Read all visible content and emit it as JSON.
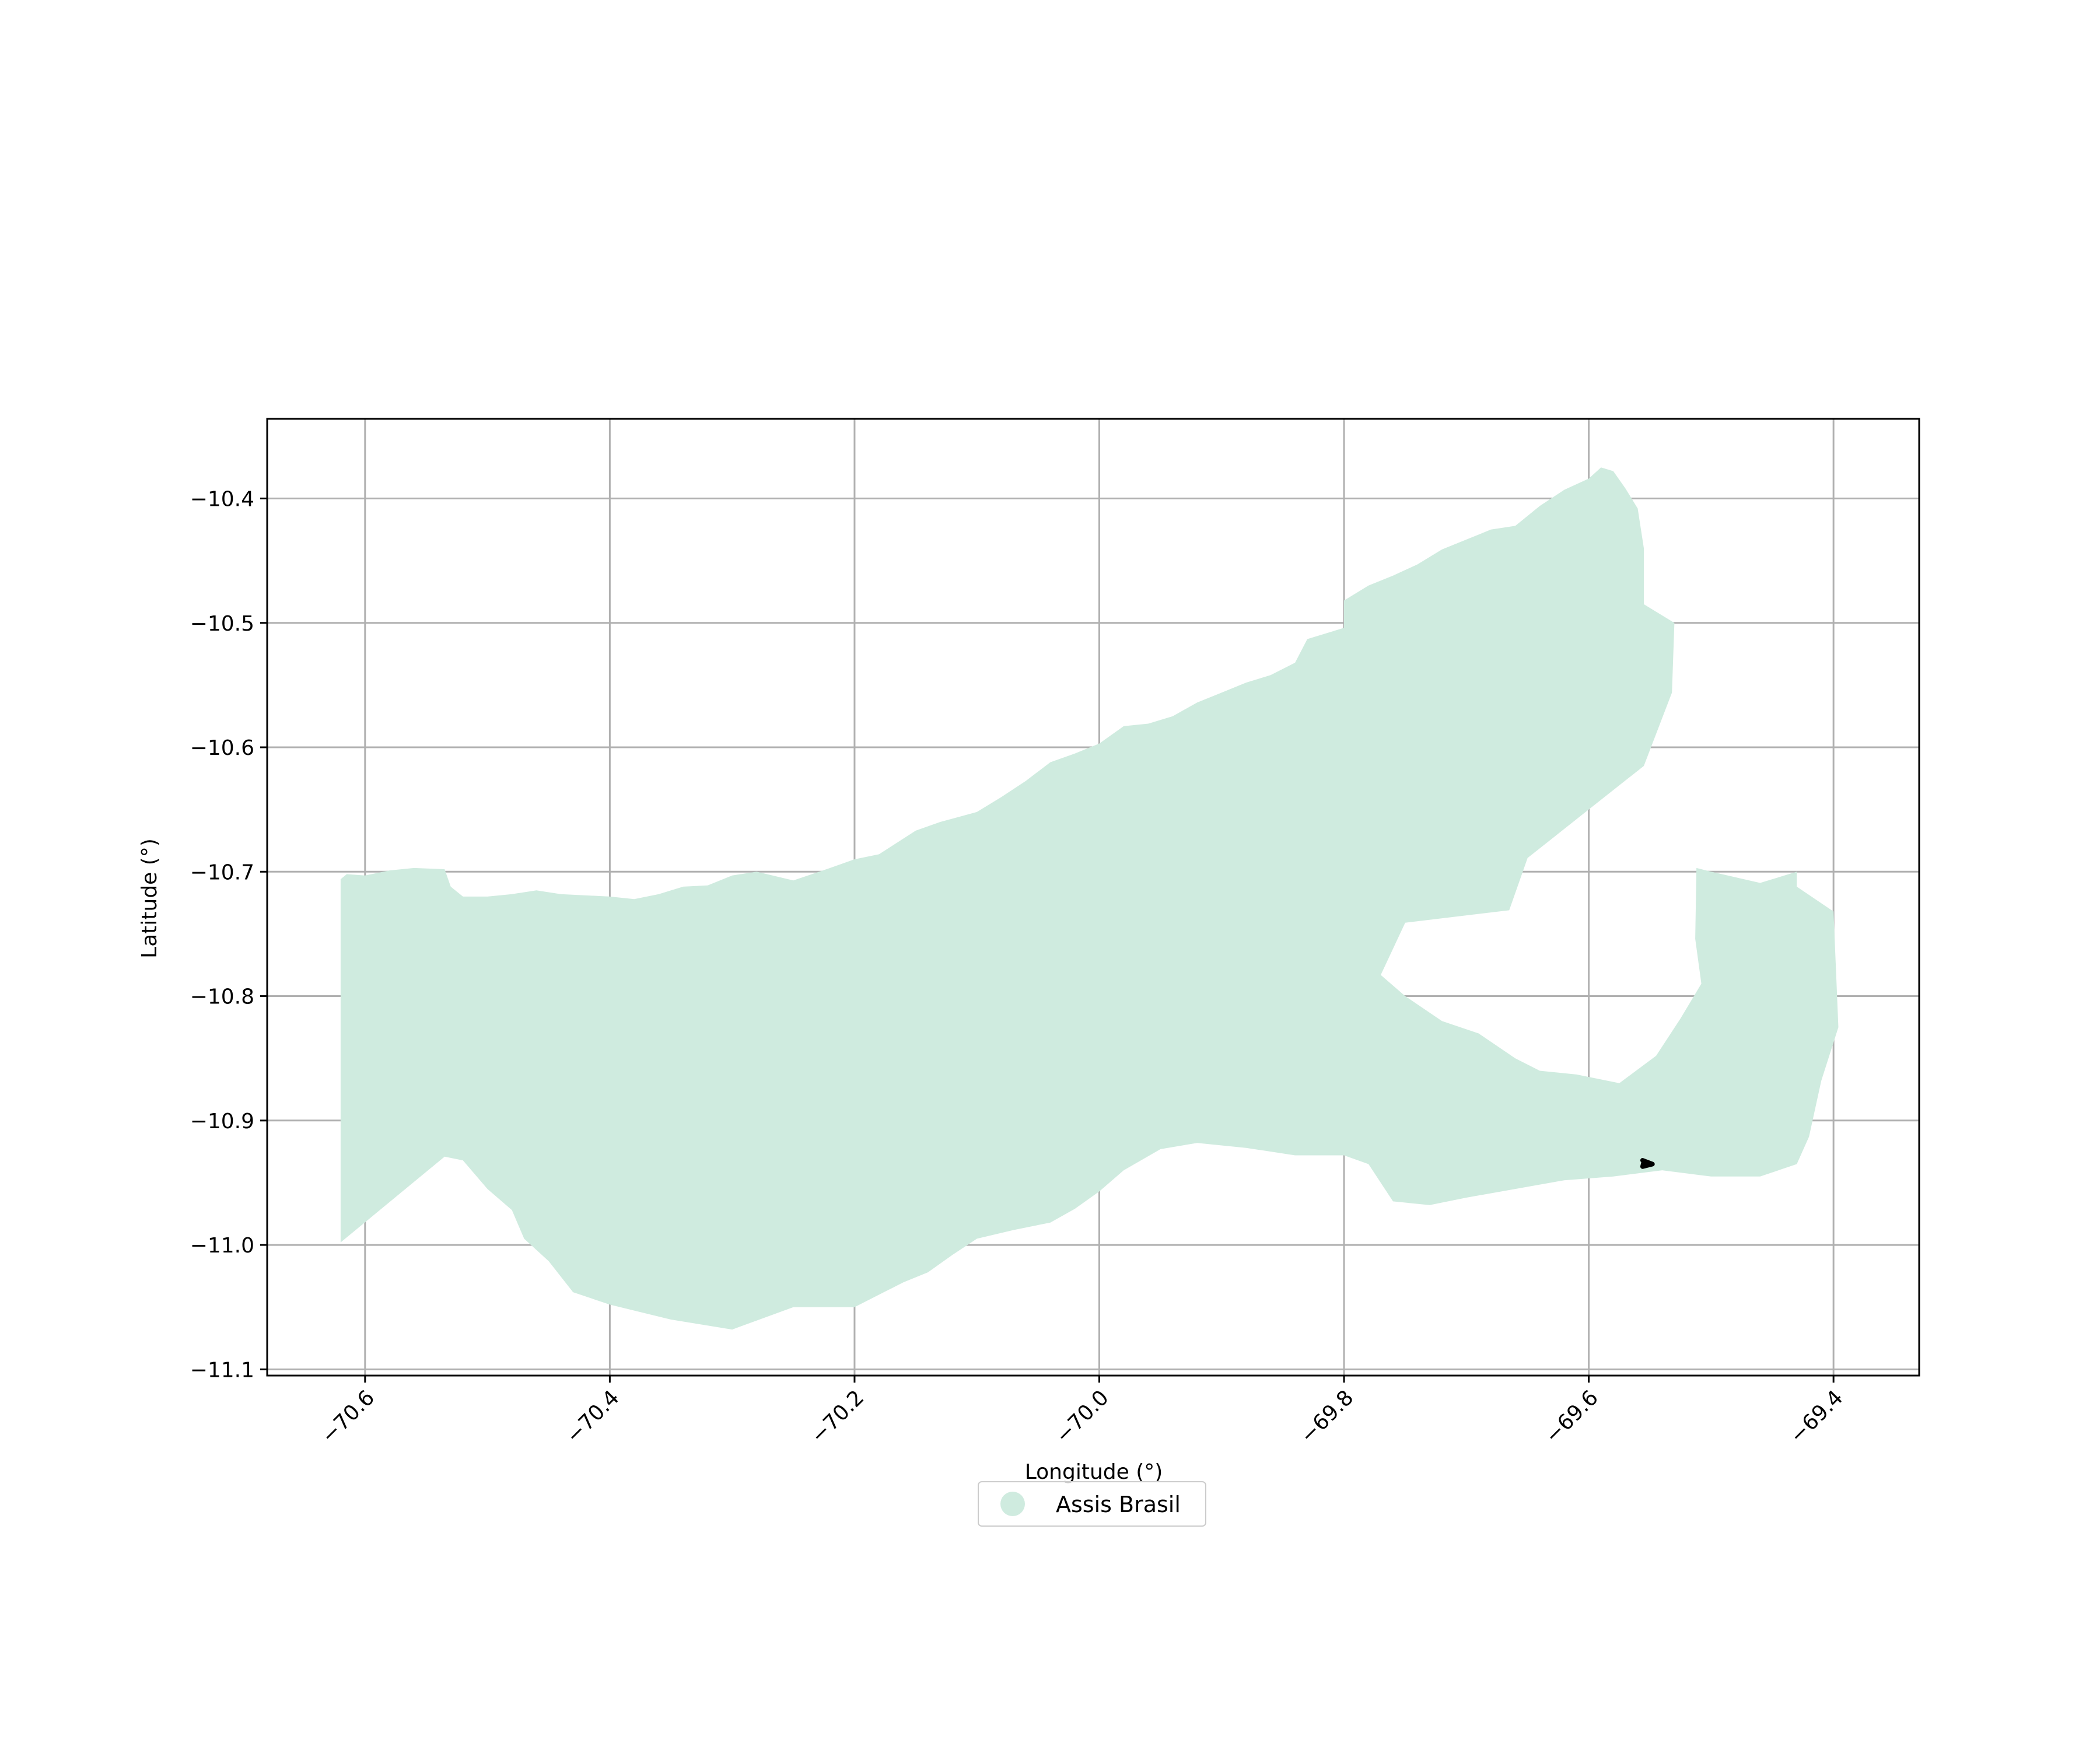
{
  "colors": {
    "region_fill": "#cfebdf",
    "outline": "#000000",
    "grid": "#b0b0b0",
    "background": "#ffffff"
  },
  "chart_data": {
    "type": "map",
    "xlabel": "Longitude (°)",
    "ylabel": "Latitude (°)",
    "xlim": [
      -70.68,
      -69.33
    ],
    "ylim": [
      -11.105,
      -10.336
    ],
    "x_ticks": [
      -70.6,
      -70.4,
      -70.2,
      -70.0,
      -69.8,
      -69.6,
      -69.4
    ],
    "y_ticks": [
      -10.4,
      -10.5,
      -10.6,
      -10.7,
      -10.8,
      -10.9,
      -11.0,
      -11.1
    ],
    "x_tick_labels": [
      "−70.6",
      "−70.4",
      "−70.2",
      "−70.0",
      "−69.8",
      "−69.6",
      "−69.4"
    ],
    "y_tick_labels": [
      "−10.4",
      "−10.5",
      "−10.6",
      "−10.7",
      "−10.8",
      "−10.9",
      "−11.0",
      "−11.1"
    ],
    "grid": true,
    "legend": {
      "placement": "bottom-center",
      "entries": [
        "Assis Brasil"
      ]
    },
    "series": [
      {
        "name": "Assis Brasil",
        "kind": "polygon",
        "outer": [
          [
            -70.62,
            -10.706
          ],
          [
            -70.615,
            -10.702
          ],
          [
            -70.6,
            -10.703
          ],
          [
            -70.58,
            -10.699
          ],
          [
            -70.56,
            -10.697
          ],
          [
            -70.535,
            -10.698
          ],
          [
            -70.53,
            -10.712
          ],
          [
            -70.52,
            -10.72
          ],
          [
            -70.5,
            -10.72
          ],
          [
            -70.48,
            -10.718
          ],
          [
            -70.46,
            -10.715
          ],
          [
            -70.44,
            -10.718
          ],
          [
            -70.4,
            -10.72
          ],
          [
            -70.38,
            -10.722
          ],
          [
            -70.36,
            -10.718
          ],
          [
            -70.34,
            -10.712
          ],
          [
            -70.32,
            -10.711
          ],
          [
            -70.3,
            -10.703
          ],
          [
            -70.28,
            -10.7
          ],
          [
            -70.25,
            -10.707
          ],
          [
            -70.22,
            -10.697
          ],
          [
            -70.2,
            -10.69
          ],
          [
            -70.18,
            -10.686
          ],
          [
            -70.15,
            -10.667
          ],
          [
            -70.13,
            -10.66
          ],
          [
            -70.1,
            -10.652
          ],
          [
            -70.08,
            -10.64
          ],
          [
            -70.06,
            -10.627
          ],
          [
            -70.04,
            -10.612
          ],
          [
            -70.02,
            -10.605
          ],
          [
            -70.0,
            -10.597
          ],
          [
            -69.98,
            -10.583
          ],
          [
            -69.96,
            -10.581
          ],
          [
            -69.94,
            -10.575
          ],
          [
            -69.92,
            -10.564
          ],
          [
            -69.9,
            -10.556
          ],
          [
            -69.88,
            -10.548
          ],
          [
            -69.86,
            -10.542
          ],
          [
            -69.84,
            -10.532
          ],
          [
            -69.83,
            -10.513
          ],
          [
            -69.8,
            -10.504
          ],
          [
            -69.8,
            -10.482
          ],
          [
            -69.78,
            -10.47
          ],
          [
            -69.76,
            -10.462
          ],
          [
            -69.74,
            -10.453
          ],
          [
            -69.72,
            -10.441
          ],
          [
            -69.7,
            -10.433
          ],
          [
            -69.68,
            -10.425
          ],
          [
            -69.66,
            -10.422
          ],
          [
            -69.64,
            -10.406
          ],
          [
            -69.62,
            -10.393
          ],
          [
            -69.6,
            -10.384
          ],
          [
            -69.59,
            -10.375
          ],
          [
            -69.58,
            -10.378
          ],
          [
            -69.57,
            -10.392
          ],
          [
            -69.56,
            -10.408
          ],
          [
            -69.555,
            -10.44
          ],
          [
            -69.555,
            -10.485
          ],
          [
            -69.53,
            -10.5
          ],
          [
            -69.532,
            -10.556
          ],
          [
            -69.555,
            -10.615
          ],
          [
            -69.6,
            -10.65
          ],
          [
            -69.65,
            -10.689
          ],
          [
            -69.665,
            -10.731
          ],
          [
            -69.75,
            -10.741
          ],
          [
            -69.77,
            -10.783
          ],
          [
            -69.75,
            -10.8
          ],
          [
            -69.72,
            -10.82
          ],
          [
            -69.69,
            -10.83
          ],
          [
            -69.66,
            -10.85
          ],
          [
            -69.64,
            -10.86
          ],
          [
            -69.61,
            -10.863
          ],
          [
            -69.575,
            -10.87
          ],
          [
            -69.545,
            -10.848
          ],
          [
            -69.525,
            -10.818
          ],
          [
            -69.508,
            -10.79
          ],
          [
            -69.513,
            -10.754
          ],
          [
            -69.512,
            -10.697
          ],
          [
            -69.5,
            -10.7
          ],
          [
            -69.46,
            -10.709
          ],
          [
            -69.43,
            -10.7
          ],
          [
            -69.43,
            -10.712
          ],
          [
            -69.4,
            -10.732
          ],
          [
            -69.396,
            -10.825
          ],
          [
            -69.41,
            -10.868
          ],
          [
            -69.42,
            -10.913
          ],
          [
            -69.43,
            -10.935
          ],
          [
            -69.46,
            -10.945
          ],
          [
            -69.5,
            -10.945
          ],
          [
            -69.54,
            -10.94
          ],
          [
            -69.58,
            -10.945
          ],
          [
            -69.62,
            -10.948
          ],
          [
            -69.66,
            -10.955
          ],
          [
            -69.7,
            -10.962
          ],
          [
            -69.73,
            -10.968
          ],
          [
            -69.76,
            -10.965
          ],
          [
            -69.78,
            -10.935
          ],
          [
            -69.8,
            -10.928
          ],
          [
            -69.84,
            -10.928
          ],
          [
            -69.88,
            -10.922
          ],
          [
            -69.92,
            -10.918
          ],
          [
            -69.95,
            -10.923
          ],
          [
            -69.98,
            -10.94
          ],
          [
            -70.0,
            -10.957
          ],
          [
            -70.02,
            -10.971
          ],
          [
            -70.04,
            -10.982
          ],
          [
            -70.07,
            -10.988
          ],
          [
            -70.1,
            -10.995
          ],
          [
            -70.12,
            -11.008
          ],
          [
            -70.14,
            -11.022
          ],
          [
            -70.16,
            -11.03
          ],
          [
            -70.2,
            -11.05
          ],
          [
            -70.25,
            -11.05
          ],
          [
            -70.3,
            -11.068
          ],
          [
            -70.35,
            -11.06
          ],
          [
            -70.4,
            -11.048
          ],
          [
            -70.43,
            -11.038
          ],
          [
            -70.45,
            -11.013
          ],
          [
            -70.47,
            -10.995
          ],
          [
            -70.48,
            -10.972
          ],
          [
            -70.5,
            -10.955
          ],
          [
            -70.52,
            -10.932
          ],
          [
            -70.535,
            -10.929
          ],
          [
            -70.62,
            -10.998
          ]
        ],
        "highlight_outline": [
          [
            -69.556,
            -10.932
          ],
          [
            -69.548,
            -10.935
          ],
          [
            -69.556,
            -10.937
          ],
          [
            -69.555,
            -10.933
          ]
        ]
      }
    ]
  }
}
